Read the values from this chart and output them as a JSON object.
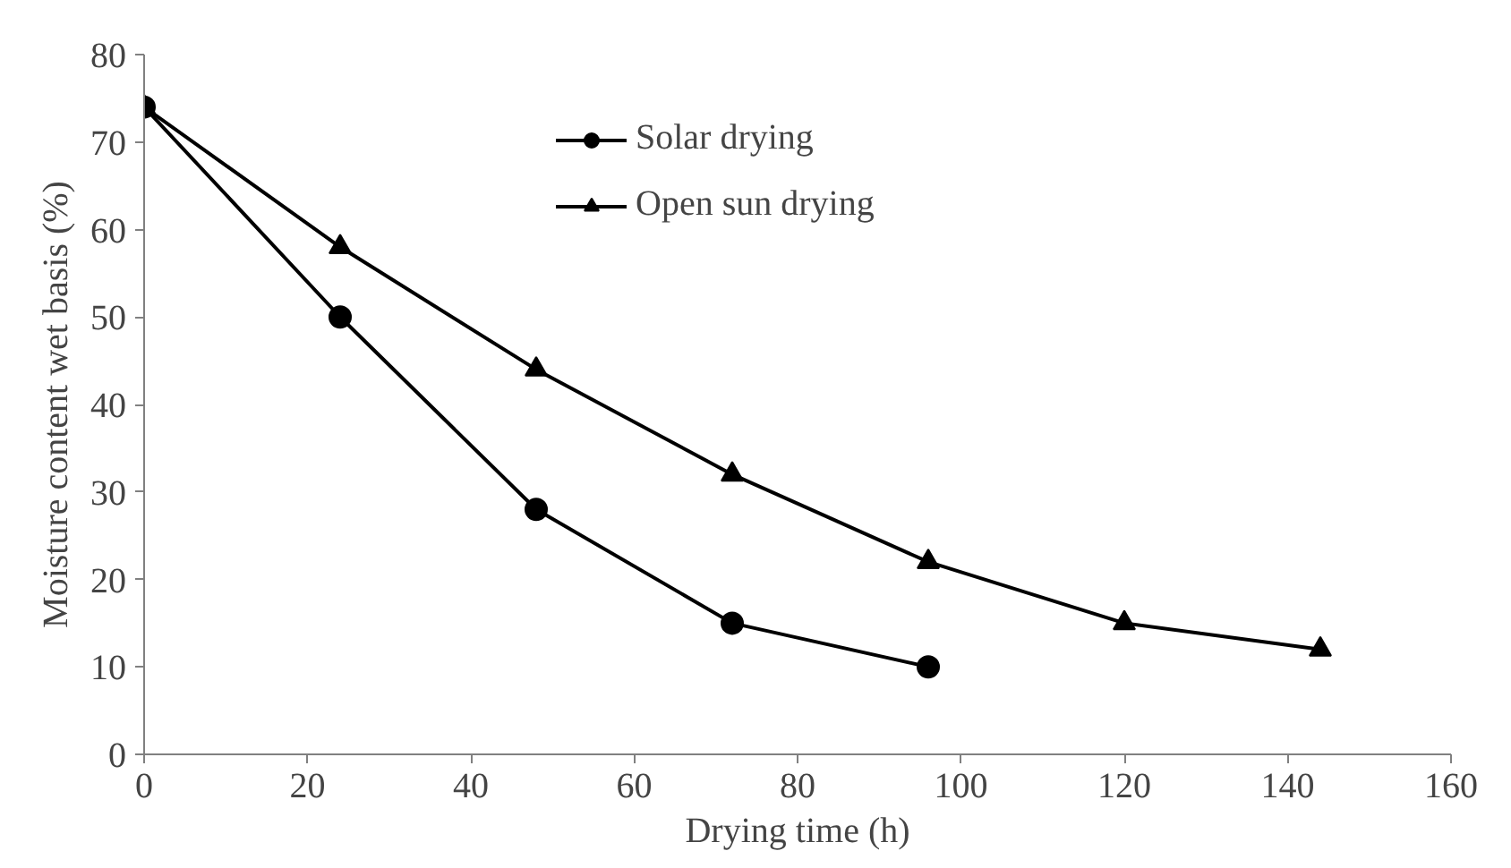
{
  "chart_data": {
    "type": "line",
    "xlabel": "Drying time (h)",
    "ylabel": "Moisture content wet basis (%)",
    "xlim": [
      0,
      160
    ],
    "xticks": [
      0,
      20,
      40,
      60,
      80,
      100,
      120,
      140,
      160
    ],
    "ylim": [
      0,
      80
    ],
    "yticks": [
      0,
      10,
      20,
      30,
      40,
      50,
      60,
      70,
      80
    ],
    "grid": false,
    "legend": "top",
    "series": [
      {
        "name": "Solar drying",
        "color": "#000000",
        "marker": "circle",
        "x": [
          0,
          24,
          48,
          72,
          96
        ],
        "values": [
          74,
          50,
          28,
          15,
          10
        ]
      },
      {
        "name": "Open sun drying",
        "color": "#000000",
        "marker": "triangle",
        "x": [
          0,
          24,
          48,
          72,
          96,
          120,
          144
        ],
        "values": [
          74,
          58,
          44,
          32,
          22,
          15,
          12
        ]
      }
    ]
  }
}
